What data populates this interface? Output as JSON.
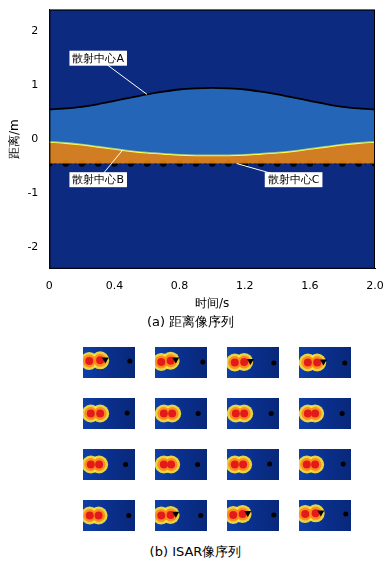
{
  "chart_data": [
    {
      "type": "line",
      "title": "(a) 距离像序列",
      "x_label": "时间/s",
      "y_label": "距离/m",
      "xlim": [
        0,
        2
      ],
      "xticks": [
        0,
        0.4,
        0.8,
        1.2,
        1.6,
        {
          "value": 2,
          "label": "2.0"
        }
      ],
      "ylim": [
        -2.4,
        2.4
      ],
      "yticks": [
        -2,
        -1,
        0,
        1,
        2
      ],
      "grid": false,
      "x": [
        0,
        0.1,
        0.2,
        0.3,
        0.4,
        0.5,
        0.6,
        0.7,
        0.8,
        0.9,
        1.0,
        1.1,
        1.2,
        1.3,
        1.4,
        1.5,
        1.6,
        1.7,
        1.8,
        1.9,
        2.0
      ],
      "series": [
        {
          "color": "#000000",
          "line_style": "solid",
          "marker": "none",
          "values": [
            0.55,
            0.57,
            0.6,
            0.65,
            0.71,
            0.77,
            0.83,
            0.88,
            0.92,
            0.94,
            0.95,
            0.94,
            0.92,
            0.88,
            0.83,
            0.77,
            0.71,
            0.65,
            0.6,
            0.57,
            0.55
          ]
        },
        {
          "color": "#ffff40",
          "line_style": "solid",
          "marker": "none",
          "values": [
            -0.05,
            -0.07,
            -0.1,
            -0.14,
            -0.18,
            -0.22,
            -0.25,
            -0.27,
            -0.29,
            -0.3,
            -0.3,
            -0.3,
            -0.29,
            -0.27,
            -0.25,
            -0.22,
            -0.18,
            -0.14,
            -0.1,
            -0.07,
            -0.05
          ]
        },
        {
          "color": "#000000",
          "line_style": "dotted",
          "marker": "circle",
          "values": [
            -0.45,
            -0.45,
            -0.45,
            -0.45,
            -0.45,
            -0.45,
            -0.45,
            -0.45,
            -0.45,
            -0.45,
            -0.45,
            -0.45,
            -0.45,
            -0.45,
            -0.45,
            -0.45,
            -0.45,
            -0.45,
            -0.45,
            -0.45,
            -0.45
          ]
        }
      ],
      "annotations": [
        {
          "text": "散射中心A",
          "x": 0.3,
          "y": 1.5,
          "arrow_to": [
            0.6,
            0.83
          ]
        },
        {
          "text": "散射中心B",
          "x": 0.3,
          "y": -0.75,
          "arrow_to": [
            0.45,
            -0.2
          ]
        },
        {
          "text": "散射中心C",
          "x": 1.5,
          "y": -0.75,
          "arrow_to": [
            1.15,
            -0.45
          ]
        }
      ]
    },
    {
      "type": "scatter",
      "title": "(b) ISAR像序列",
      "xlim": [
        0,
        1
      ],
      "ylim": [
        0,
        1
      ],
      "tick_labels": false,
      "grid": false,
      "frames": [
        {
          "series": [
            {
              "marker": "circle",
              "color": "#e31a1c",
              "x": [
                0.12,
                0.33
              ],
              "y": [
                0.55,
                0.57
              ]
            },
            {
              "marker": "circle",
              "color": "#000000",
              "x": [
                0.9
              ],
              "y": [
                0.55
              ]
            },
            {
              "marker": "triangle",
              "color": "#000000",
              "x": [
                0.43
              ],
              "y": [
                0.6
              ]
            }
          ]
        },
        {
          "series": [
            {
              "marker": "circle",
              "color": "#e31a1c",
              "x": [
                0.12,
                0.3
              ],
              "y": [
                0.52,
                0.56
              ]
            },
            {
              "marker": "circle",
              "color": "#000000",
              "x": [
                0.92
              ],
              "y": [
                0.52
              ]
            },
            {
              "marker": "triangle",
              "color": "#000000",
              "x": [
                0.4
              ],
              "y": [
                0.6
              ]
            }
          ]
        },
        {
          "series": [
            {
              "marker": "circle",
              "color": "#e31a1c",
              "x": [
                0.15,
                0.33
              ],
              "y": [
                0.5,
                0.52
              ]
            },
            {
              "marker": "circle",
              "color": "#000000",
              "x": [
                0.9
              ],
              "y": [
                0.48
              ]
            },
            {
              "marker": "triangle",
              "color": "#000000",
              "x": [
                0.45
              ],
              "y": [
                0.55
              ]
            }
          ]
        },
        {
          "series": [
            {
              "marker": "circle",
              "color": "#e31a1c",
              "x": [
                0.17,
                0.35
              ],
              "y": [
                0.5,
                0.5
              ]
            },
            {
              "marker": "circle",
              "color": "#000000",
              "x": [
                0.88
              ],
              "y": [
                0.48
              ]
            },
            {
              "marker": "triangle",
              "color": "#000000",
              "x": [
                0.47
              ],
              "y": [
                0.53
              ]
            }
          ]
        },
        {
          "series": [
            {
              "marker": "circle",
              "color": "#e31a1c",
              "x": [
                0.15,
                0.33
              ],
              "y": [
                0.5,
                0.5
              ]
            },
            {
              "marker": "circle",
              "color": "#000000",
              "x": [
                0.85
              ],
              "y": [
                0.52
              ]
            }
          ]
        },
        {
          "series": [
            {
              "marker": "circle",
              "color": "#e31a1c",
              "x": [
                0.17,
                0.33
              ],
              "y": [
                0.5,
                0.5
              ]
            },
            {
              "marker": "circle",
              "color": "#000000",
              "x": [
                0.83
              ],
              "y": [
                0.5
              ]
            }
          ]
        },
        {
          "series": [
            {
              "marker": "circle",
              "color": "#e31a1c",
              "x": [
                0.17,
                0.33
              ],
              "y": [
                0.5,
                0.5
              ]
            },
            {
              "marker": "circle",
              "color": "#000000",
              "x": [
                0.85
              ],
              "y": [
                0.5
              ]
            }
          ]
        },
        {
          "series": [
            {
              "marker": "circle",
              "color": "#e31a1c",
              "x": [
                0.17,
                0.31
              ],
              "y": [
                0.5,
                0.5
              ]
            },
            {
              "marker": "circle",
              "color": "#000000",
              "x": [
                0.83
              ],
              "y": [
                0.5
              ]
            }
          ]
        },
        {
          "series": [
            {
              "marker": "circle",
              "color": "#e31a1c",
              "x": [
                0.15,
                0.31
              ],
              "y": [
                0.5,
                0.5
              ]
            },
            {
              "marker": "circle",
              "color": "#000000",
              "x": [
                0.82
              ],
              "y": [
                0.5
              ]
            }
          ]
        },
        {
          "series": [
            {
              "marker": "circle",
              "color": "#e31a1c",
              "x": [
                0.17,
                0.31
              ],
              "y": [
                0.5,
                0.5
              ]
            },
            {
              "marker": "circle",
              "color": "#000000",
              "x": [
                0.82
              ],
              "y": [
                0.5
              ]
            }
          ]
        },
        {
          "series": [
            {
              "marker": "circle",
              "color": "#e31a1c",
              "x": [
                0.15,
                0.31
              ],
              "y": [
                0.5,
                0.5
              ]
            },
            {
              "marker": "circle",
              "color": "#000000",
              "x": [
                0.82
              ],
              "y": [
                0.52
              ]
            }
          ]
        },
        {
          "series": [
            {
              "marker": "circle",
              "color": "#e31a1c",
              "x": [
                0.15,
                0.31
              ],
              "y": [
                0.5,
                0.5
              ]
            },
            {
              "marker": "circle",
              "color": "#000000",
              "x": [
                0.85
              ],
              "y": [
                0.52
              ]
            }
          ]
        },
        {
          "series": [
            {
              "marker": "circle",
              "color": "#e31a1c",
              "x": [
                0.13,
                0.3
              ],
              "y": [
                0.5,
                0.5
              ]
            },
            {
              "marker": "circle",
              "color": "#000000",
              "x": [
                0.88
              ],
              "y": [
                0.5
              ]
            }
          ]
        },
        {
          "series": [
            {
              "marker": "circle",
              "color": "#e31a1c",
              "x": [
                0.12,
                0.3
              ],
              "y": [
                0.5,
                0.52
              ]
            },
            {
              "marker": "circle",
              "color": "#000000",
              "x": [
                0.88
              ],
              "y": [
                0.5
              ]
            },
            {
              "marker": "triangle",
              "color": "#000000",
              "x": [
                0.4
              ],
              "y": [
                0.56
              ]
            }
          ]
        },
        {
          "series": [
            {
              "marker": "circle",
              "color": "#e31a1c",
              "x": [
                0.12,
                0.3
              ],
              "y": [
                0.52,
                0.55
              ]
            },
            {
              "marker": "circle",
              "color": "#000000",
              "x": [
                0.9
              ],
              "y": [
                0.52
              ]
            },
            {
              "marker": "triangle",
              "color": "#000000",
              "x": [
                0.4
              ],
              "y": [
                0.58
              ]
            }
          ]
        },
        {
          "series": [
            {
              "marker": "circle",
              "color": "#e31a1c",
              "x": [
                0.12,
                0.32
              ],
              "y": [
                0.55,
                0.57
              ]
            },
            {
              "marker": "circle",
              "color": "#000000",
              "x": [
                0.9
              ],
              "y": [
                0.55
              ]
            },
            {
              "marker": "triangle",
              "color": "#000000",
              "x": [
                0.42
              ],
              "y": [
                0.6
              ]
            }
          ]
        }
      ]
    }
  ]
}
